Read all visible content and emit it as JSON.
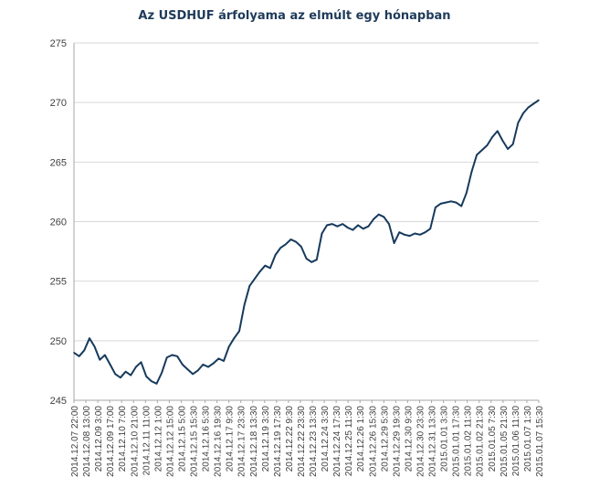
{
  "chart_data": {
    "type": "line",
    "title": "Az USDHUF árfolyama az elmúlt egy hónapban",
    "xlabel": "",
    "ylabel": "",
    "ylim": [
      245,
      275
    ],
    "yticks": [
      245,
      250,
      255,
      260,
      265,
      270,
      275
    ],
    "grid": true,
    "line_color": "#163a5c",
    "xticks": [
      "2014.12.07 22:00",
      "2014.12.08 13:00",
      "2014.12.09 3:00",
      "2014.12.09 17:00",
      "2014.12.10 7:00",
      "2014.12.10 21:00",
      "2014.12.11 11:00",
      "2014.12.12 1:00",
      "2014.12.12 15:00",
      "2014.12.15 5:00",
      "2014.12.15 15:30",
      "2014.12.16 5:30",
      "2014.12.16 19:30",
      "2014.12.17 9:30",
      "2014.12.17 23:30",
      "2014.12.18 13:30",
      "2014.12.19 3:30",
      "2014.12.19 17:30",
      "2014.12.22 9:30",
      "2014.12.22 23:30",
      "2014.12.23 13:30",
      "2014.12.24 3:30",
      "2014.12.24 17:30",
      "2014.12.25 11:30",
      "2014.12.26 1:30",
      "2014.12.26 15:30",
      "2014.12.29 5:30",
      "2014.12.29 19:30",
      "2014.12.30 9:30",
      "2014.12.30 23:30",
      "2014.12.31 13:30",
      "2015.01.01 3:30",
      "2015.01.01 17:30",
      "2015.01.02 11:30",
      "2015.01.02 21:30",
      "2015.01.05 7:30",
      "2015.01.05 21:30",
      "2015.01.06 11:30",
      "2015.01.07 1:30",
      "2015.01.07 15:30"
    ],
    "series": [
      {
        "values": [
          249.0,
          248.7,
          249.2,
          250.2,
          249.5,
          248.4,
          248.8,
          248.0,
          247.2,
          246.9,
          247.4,
          247.1,
          247.8,
          248.2,
          247.0,
          246.6,
          246.4,
          247.3,
          248.6,
          248.8,
          248.7,
          248.0,
          247.6,
          247.2,
          247.5,
          248.0,
          247.8,
          248.1,
          248.5,
          248.3,
          249.5,
          250.2,
          250.8,
          253.0,
          254.6,
          255.2,
          255.8,
          256.3,
          256.1,
          257.2,
          257.8,
          258.1,
          258.5,
          258.3,
          257.9,
          256.9,
          256.6,
          256.8,
          259.0,
          259.7,
          259.8,
          259.6,
          259.8,
          259.5,
          259.3,
          259.7,
          259.4,
          259.6,
          260.2,
          260.6,
          260.4,
          259.8,
          258.2,
          259.1,
          258.9,
          258.8,
          259.0,
          258.9,
          259.1,
          259.4,
          261.2,
          261.5,
          261.6,
          261.7,
          261.6,
          261.3,
          262.4,
          264.2,
          265.6,
          266.0,
          266.4,
          267.1,
          267.6,
          266.8,
          266.1,
          266.5,
          268.3,
          269.1,
          269.6,
          269.9,
          270.2
        ]
      }
    ]
  }
}
